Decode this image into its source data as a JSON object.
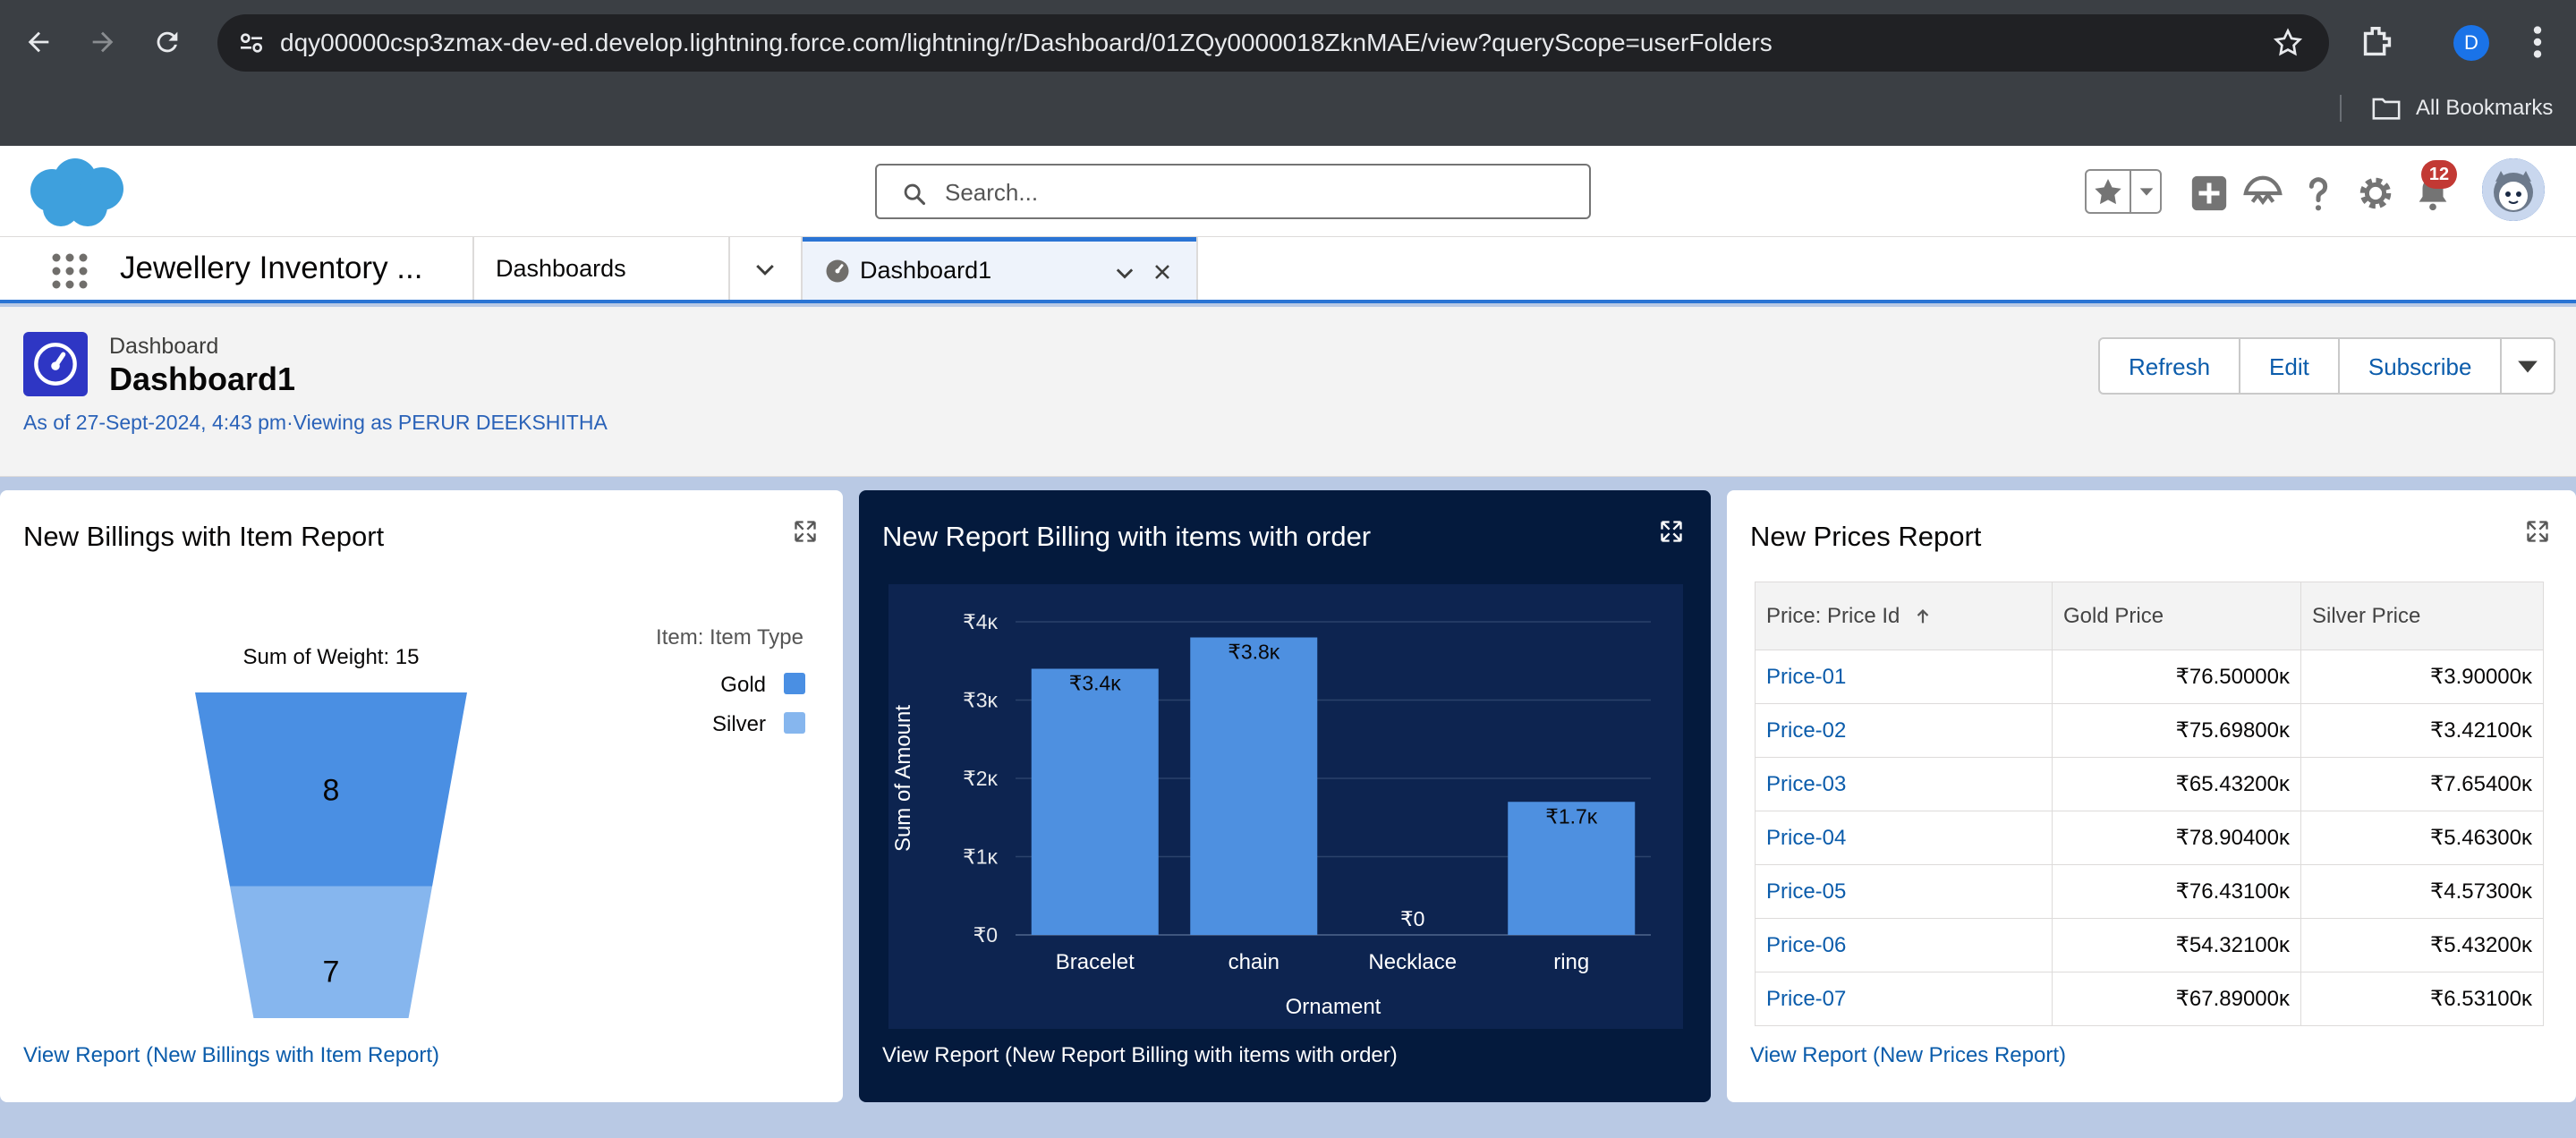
{
  "browser": {
    "url": "dqy00000csp3zmax-dev-ed.develop.lightning.force.com/lightning/r/Dashboard/01ZQy0000018ZknMAE/view?queryScope=userFolders",
    "profile_initial": "D",
    "bookmarks_label": "All Bookmarks"
  },
  "header": {
    "search_placeholder": "Search...",
    "notification_count": "12"
  },
  "nav": {
    "app_name": "Jewellery Inventory ...",
    "item": "Dashboards",
    "active_tab": "Dashboard1"
  },
  "dashboard": {
    "type_label": "Dashboard",
    "title": "Dashboard1",
    "meta": "As of 27-Sept-2024, 4:43 pm·Viewing as PERUR DEEKSHITHA",
    "buttons": {
      "refresh": "Refresh",
      "edit": "Edit",
      "subscribe": "Subscribe"
    }
  },
  "widgets": {
    "billings": {
      "title": "New Billings with Item Report",
      "link": "View Report (New Billings with Item Report)"
    },
    "order": {
      "title": "New Report Billing with items with order",
      "link": "View Report (New Report Billing with items with order)"
    },
    "prices": {
      "title": "New Prices Report",
      "link": "View Report (New Prices Report)",
      "columns": [
        "Price: Price Id",
        "Gold Price",
        "Silver Price"
      ],
      "rows": [
        [
          "Price-01",
          "₹76.50000ĸ",
          "₹3.90000ĸ"
        ],
        [
          "Price-02",
          "₹75.69800ĸ",
          "₹3.42100ĸ"
        ],
        [
          "Price-03",
          "₹65.43200ĸ",
          "₹7.65400ĸ"
        ],
        [
          "Price-04",
          "₹78.90400ĸ",
          "₹5.46300ĸ"
        ],
        [
          "Price-05",
          "₹76.43100ĸ",
          "₹4.57300ĸ"
        ],
        [
          "Price-06",
          "₹54.32100ĸ",
          "₹5.43200ĸ"
        ],
        [
          "Price-07",
          "₹67.89000ĸ",
          "₹6.53100ĸ"
        ]
      ]
    }
  },
  "colors": {
    "gold": "#4a8fe3",
    "silver": "#86b6ee",
    "bar": "#4e90e0",
    "accent": "#2a74d4"
  },
  "chart_data": [
    {
      "type": "funnel",
      "title": "Sum of Weight: 15",
      "legend_title": "Item: Item Type",
      "legend_position": "top-right",
      "categories": [
        "Gold",
        "Silver"
      ],
      "values": [
        8,
        7
      ]
    },
    {
      "type": "bar",
      "categories": [
        "Bracelet",
        "chain",
        "Necklace",
        "ring"
      ],
      "values": [
        3400,
        3800,
        0,
        1700
      ],
      "data_labels": [
        "₹3.4ĸ",
        "₹3.8ĸ",
        "₹0",
        "₹1.7ĸ"
      ],
      "xlabel": "Ornament",
      "ylabel": "Sum of Amount",
      "yticks": [
        0,
        1000,
        2000,
        3000,
        4000
      ],
      "ytick_labels": [
        "₹0",
        "₹1ĸ",
        "₹2ĸ",
        "₹3ĸ",
        "₹4ĸ"
      ],
      "ylim": [
        0,
        4000
      ],
      "grid": true
    }
  ]
}
